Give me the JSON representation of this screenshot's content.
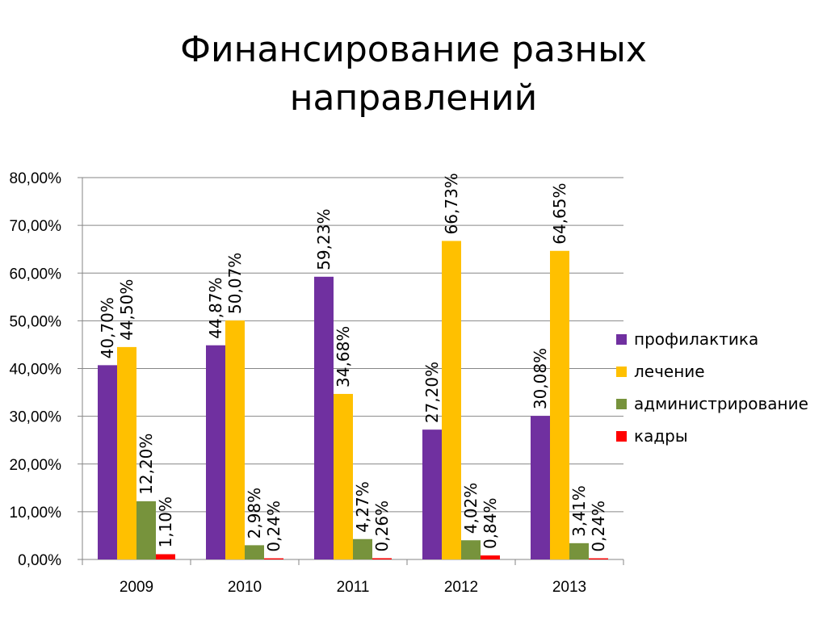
{
  "title": {
    "line1": "Финансирование разных",
    "line2": "направлений"
  },
  "chart_data": {
    "type": "bar",
    "categories": [
      "2009",
      "2010",
      "2011",
      "2012",
      "2013"
    ],
    "series": [
      {
        "name": "профилактика",
        "color": "#7030A0",
        "values": [
          40.7,
          44.87,
          59.23,
          27.2,
          30.08
        ],
        "labels": [
          "40,70%",
          "44,87%",
          "59,23%",
          "27,20%",
          "30,08%"
        ]
      },
      {
        "name": "лечение",
        "color": "#FFC000",
        "values": [
          44.5,
          50.07,
          34.68,
          66.73,
          64.65
        ],
        "labels": [
          "44,50%",
          "50,07%",
          "34,68%",
          "66,73%",
          "64,65%"
        ]
      },
      {
        "name": "администрирование",
        "color": "#77933C",
        "values": [
          12.2,
          2.98,
          4.27,
          4.02,
          3.41
        ],
        "labels": [
          "12,20%",
          "2,98%",
          "4,27%",
          "4,02%",
          "3,41%"
        ]
      },
      {
        "name": "кадры",
        "color": "#FF0000",
        "values": [
          1.1,
          0.24,
          0.26,
          0.84,
          0.24
        ],
        "labels": [
          "1,10%",
          "0,24%",
          "0,26%",
          "0,84%",
          "0,24%"
        ]
      }
    ],
    "yticks": [
      "0,00%",
      "10,00%",
      "20,00%",
      "30,00%",
      "40,00%",
      "50,00%",
      "60,00%",
      "70,00%",
      "80,00%"
    ],
    "ylim": [
      0,
      80
    ],
    "grid": true,
    "legend_position": "right"
  }
}
